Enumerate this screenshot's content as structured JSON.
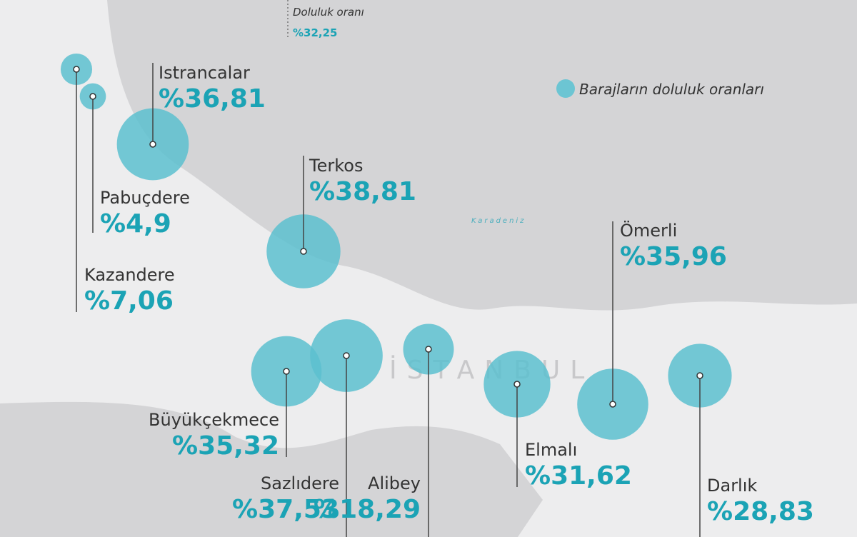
{
  "header": {
    "caption": "Doluluk oranı",
    "caption_value": "%32,25"
  },
  "legend": {
    "label": "Barajların doluluk oranları"
  },
  "map_labels": {
    "sea": "Karadeniz",
    "city": "İSTANBUL"
  },
  "dams": [
    {
      "name": "Kazandere",
      "value": 7.06,
      "label": "%7,06"
    },
    {
      "name": "Pabuçdere",
      "value": 4.9,
      "label": "%4,9"
    },
    {
      "name": "Istrancalar",
      "value": 36.81,
      "label": "%36,81"
    },
    {
      "name": "Terkos",
      "value": 38.81,
      "label": "%38,81"
    },
    {
      "name": "Büyükçekmece",
      "value": 35.32,
      "label": "%35,32"
    },
    {
      "name": "Sazlıdere",
      "value": 37.53,
      "label": "%37,53"
    },
    {
      "name": "Alibey",
      "value": 18.29,
      "label": "%18,29"
    },
    {
      "name": "Elmalı",
      "value": 31.62,
      "label": "%31,62"
    },
    {
      "name": "Ömerli",
      "value": 35.96,
      "label": "%35,96"
    },
    {
      "name": "Darlık",
      "value": 28.83,
      "label": "%28,83"
    }
  ]
}
